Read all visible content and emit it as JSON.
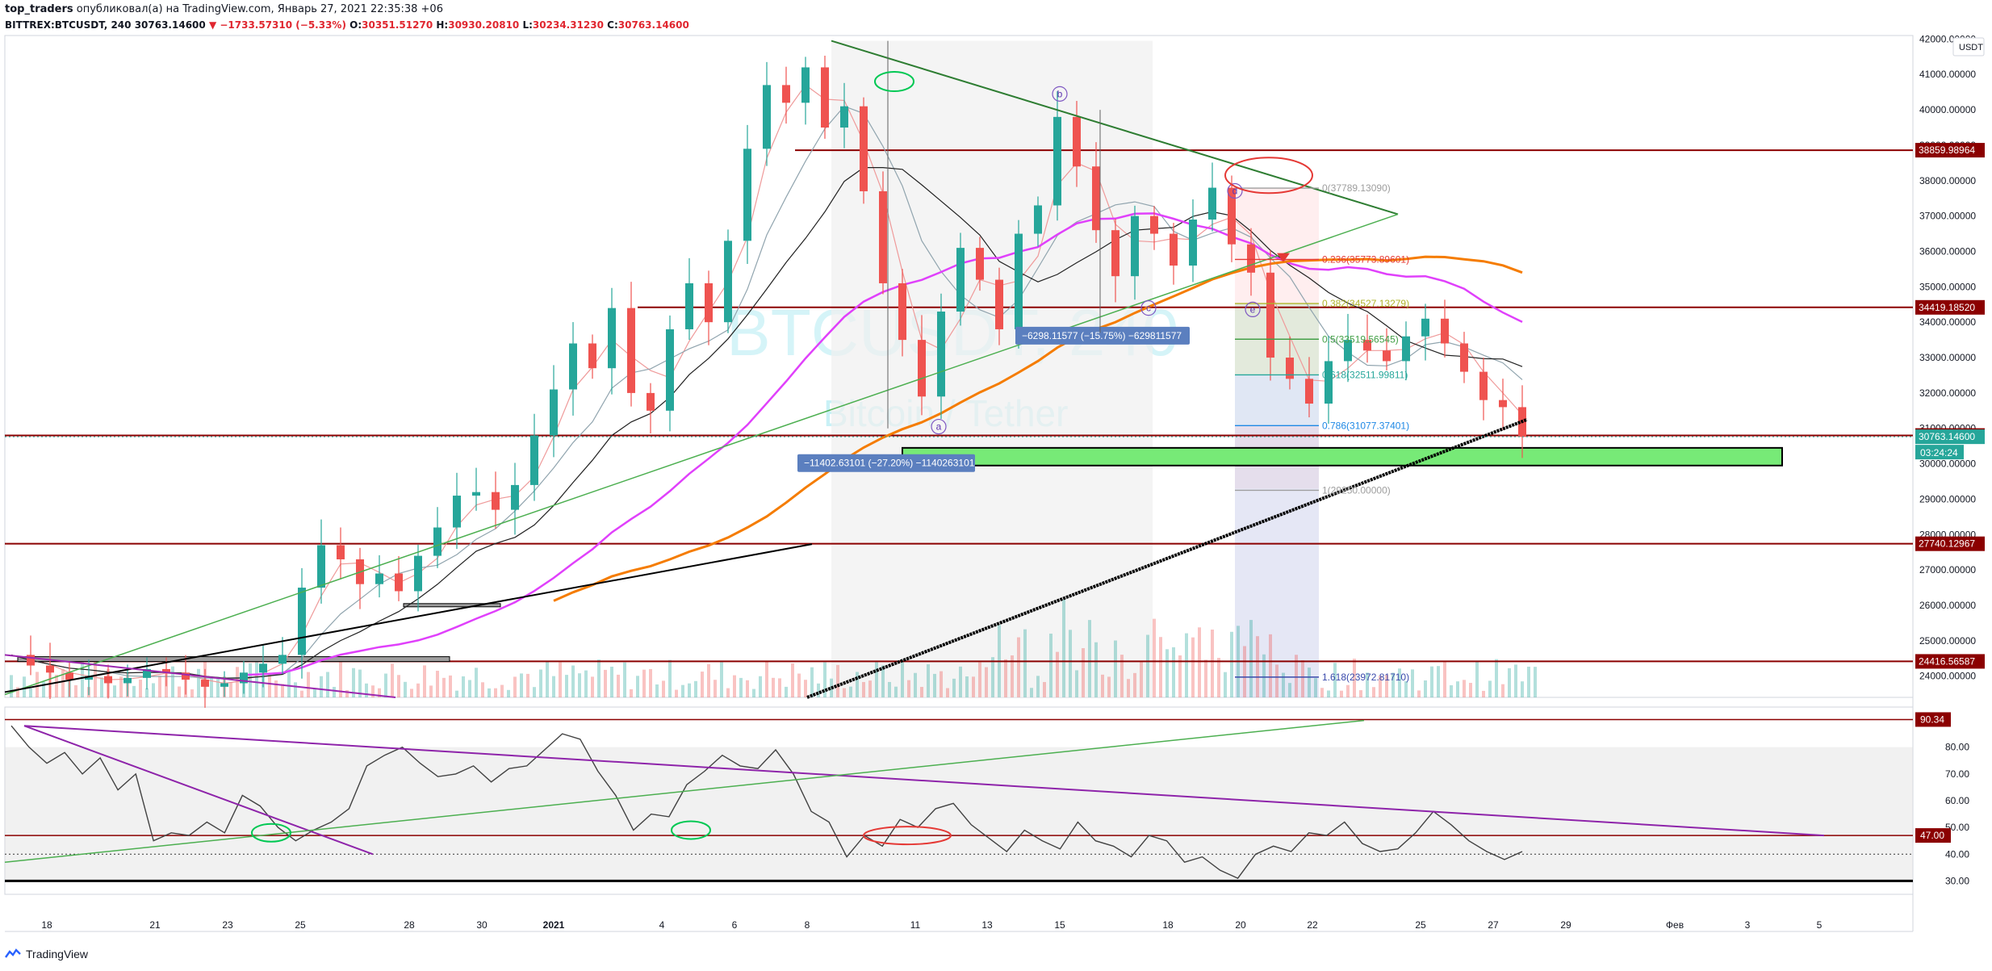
{
  "header": {
    "author": "top_traders",
    "published_text": "опубликовал(а) на TradingView.com, Январь 27, 2021 22:35:38 +06",
    "symbol": "BITTREX:BTCUSDT, 240",
    "last": "30763.14600",
    "change": "▼ −1733.57310 (−5.33%)",
    "o_label": "O:",
    "o": "30351.51270",
    "h_label": "H:",
    "h": "30930.20810",
    "l_label": "L:",
    "l": "30234.31230",
    "c_label": "C:",
    "c": "30763.14600"
  },
  "watermark": {
    "symbol": "BTCUSDT, 240",
    "name": "Bitcoin / Tether"
  },
  "footer": {
    "brand": "TradingView"
  },
  "colors": {
    "up": "#26a69a",
    "down": "#ef5350",
    "hline": "#8b0000",
    "accent_green": "#77ea77",
    "magenta": "#e040fb",
    "orange": "#f57c00",
    "purple": "#9c27b0",
    "trend_green": "#4caf50",
    "dark_green": "#2e7d32"
  },
  "chart_data": [
    {
      "type": "candlestick",
      "title": "",
      "currency": "USDT",
      "ylim": [
        23400,
        42100
      ],
      "x_ticks": [
        "18",
        "21",
        "23",
        "25",
        "28",
        "30",
        "2021",
        "4",
        "6",
        "8",
        "11",
        "13",
        "15",
        "18",
        "20",
        "22",
        "25",
        "27",
        "29",
        "Фев",
        "3",
        "5"
      ],
      "y_ticks": [
        "42000.00000",
        "41000.00000",
        "40000.00000",
        "39000.00000",
        "38000.00000",
        "37000.00000",
        "36000.00000",
        "35000.00000",
        "34000.00000",
        "33000.00000",
        "32000.00000",
        "31000.00000",
        "30000.00000",
        "29000.00000",
        "28000.00000",
        "27000.00000",
        "26000.00000",
        "25000.00000",
        "24000.00000"
      ],
      "horizontal_levels": [
        "38859.98964",
        "34419.18520",
        "30799.00000",
        "27740.12967",
        "24416.56587"
      ],
      "current_price": "30763.14600",
      "countdown": "03:24:24",
      "fibonacci": [
        {
          "label": "0(37789.13090)",
          "value": 37789.13
        },
        {
          "label": "0.236(35773.89601)",
          "value": 35773.9
        },
        {
          "label": "0.382(34527.13279)",
          "value": 34527.13
        },
        {
          "label": "0.5(33519.56545)",
          "value": 33519.57
        },
        {
          "label": "0.618(32511.99811)",
          "value": 32512.0
        },
        {
          "label": "0.786(31077.37401)",
          "value": 31077.37
        },
        {
          "label": "1(29250.00000)",
          "value": 29250.0
        },
        {
          "label": "1.618(23972.81710)",
          "value": 23972.82
        }
      ],
      "measure_labels": [
        "−6298.11577 (−15.75%) −629811577",
        "−11402.63101 (−27.20%) −1140263101"
      ],
      "wave_labels": [
        "a",
        "b",
        "c",
        "d",
        "e"
      ],
      "ohlc_closes": [
        24600,
        24300,
        24100,
        23900,
        24000,
        23800,
        23950,
        24200,
        24100,
        23900,
        23700,
        23800,
        24100,
        24350,
        24600,
        26500,
        27700,
        27300,
        26600,
        26900,
        26400,
        27400,
        28200,
        29100,
        29200,
        28700,
        29400,
        30800,
        32100,
        33400,
        32700,
        34400,
        32000,
        31500,
        33800,
        35100,
        34000,
        36300,
        38900,
        40700,
        40200,
        41200,
        39500,
        40100,
        37700,
        35100,
        33500,
        31900,
        34300,
        36100,
        35200,
        33800,
        36500,
        37300,
        39800,
        38400,
        36600,
        35300,
        37000,
        36500,
        35600,
        36900,
        37800,
        36200,
        35400,
        33000,
        32400,
        31700,
        32900,
        33500,
        33200,
        32900,
        33600,
        34100,
        33400,
        32600,
        31800,
        31600,
        30760
      ]
    },
    {
      "type": "line",
      "title": "",
      "ylim": [
        25,
        95
      ],
      "y_ticks": [
        "80.00",
        "70.00",
        "60.00",
        "50.00",
        "40.00",
        "30.00"
      ],
      "levels": [
        "90.34",
        "47.00"
      ],
      "values": [
        88,
        80,
        74,
        78,
        70,
        76,
        64,
        70,
        45,
        48,
        47,
        52,
        48,
        62,
        58,
        50,
        45,
        49,
        52,
        57,
        73,
        77,
        80,
        74,
        69,
        70,
        73,
        67,
        72,
        73,
        79,
        85,
        83,
        71,
        62,
        49,
        55,
        54,
        66,
        71,
        77,
        73,
        72,
        79,
        70,
        56,
        52,
        39,
        47,
        43,
        53,
        50,
        57,
        59,
        51,
        46,
        41,
        49,
        45,
        42,
        52,
        45,
        43,
        39,
        47,
        45,
        37,
        39,
        34,
        31,
        40,
        43,
        41,
        48,
        47,
        52,
        44,
        41,
        42,
        48,
        56,
        51,
        45,
        41,
        38,
        41
      ]
    }
  ]
}
